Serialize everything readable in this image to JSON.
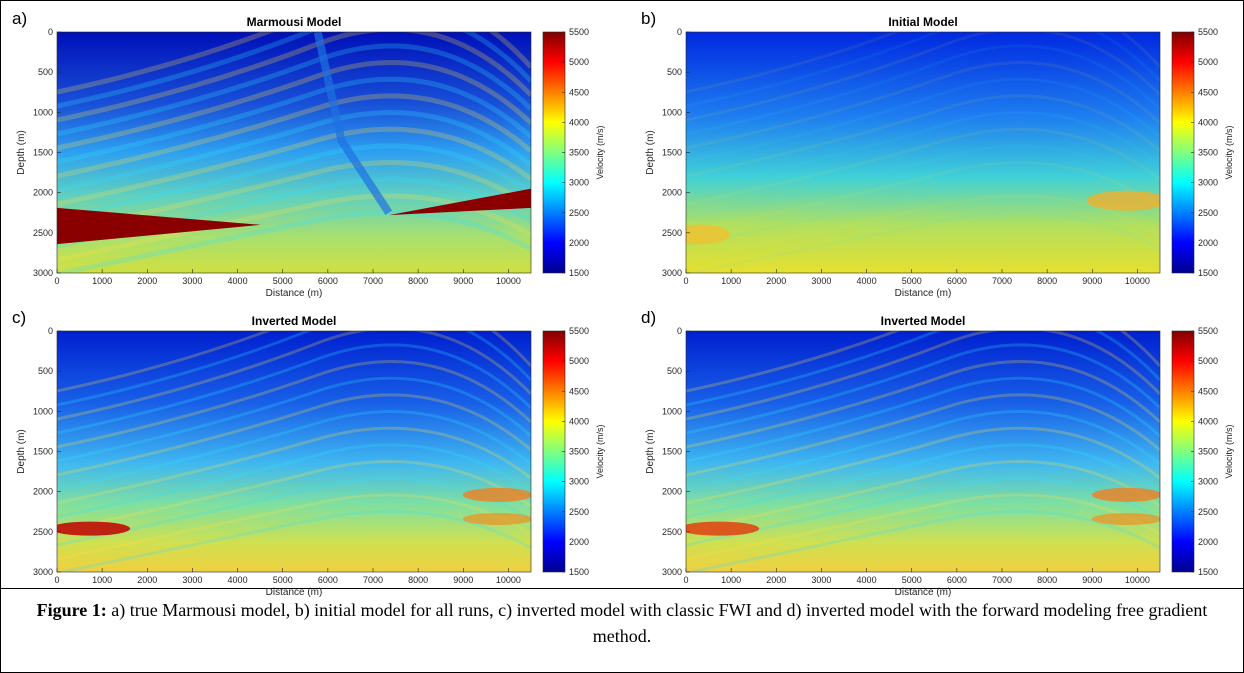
{
  "figure": {
    "panels": [
      {
        "label": "a)",
        "title": "Marmousi Model",
        "xlabel": "Distance (m)",
        "ylabel": "Depth (m)",
        "colorbar_label": "Velocity (m/s)",
        "xlim": [
          0,
          10500
        ],
        "ylim": [
          0,
          3000
        ],
        "clim": [
          1500,
          5500
        ],
        "xticks": [
          0,
          1000,
          2000,
          3000,
          4000,
          5000,
          6000,
          7000,
          8000,
          9000,
          10000
        ],
        "yticks": [
          0,
          500,
          1000,
          1500,
          2000,
          2500,
          3000
        ],
        "cticks": [
          1500,
          2000,
          2500,
          3000,
          3500,
          4000,
          4500,
          5000,
          5500
        ]
      },
      {
        "label": "b)",
        "title": "Initial Model",
        "xlabel": "Distance (m)",
        "ylabel": "Depth (m)",
        "colorbar_label": "Velocity (m/s)",
        "xlim": [
          0,
          10500
        ],
        "ylim": [
          0,
          3000
        ],
        "clim": [
          1500,
          5500
        ],
        "xticks": [
          0,
          1000,
          2000,
          3000,
          4000,
          5000,
          6000,
          7000,
          8000,
          9000,
          10000
        ],
        "yticks": [
          0,
          500,
          1000,
          1500,
          2000,
          2500,
          3000
        ],
        "cticks": [
          1500,
          2000,
          2500,
          3000,
          3500,
          4000,
          4500,
          5000,
          5500
        ]
      },
      {
        "label": "c)",
        "title": "Inverted Model",
        "xlabel": "Distance (m)",
        "ylabel": "Depth (m)",
        "colorbar_label": "Velocity (m/s)",
        "xlim": [
          0,
          10500
        ],
        "ylim": [
          0,
          3000
        ],
        "clim": [
          1500,
          5500
        ],
        "xticks": [
          0,
          1000,
          2000,
          3000,
          4000,
          5000,
          6000,
          7000,
          8000,
          9000,
          10000
        ],
        "yticks": [
          0,
          500,
          1000,
          1500,
          2000,
          2500,
          3000
        ],
        "cticks": [
          1500,
          2000,
          2500,
          3000,
          3500,
          4000,
          4500,
          5000,
          5500
        ]
      },
      {
        "label": "d)",
        "title": "Inverted Model",
        "xlabel": "Distance (m)",
        "ylabel": "Depth (m)",
        "colorbar_label": "Velocity (m/s)",
        "xlim": [
          0,
          10500
        ],
        "ylim": [
          0,
          3000
        ],
        "clim": [
          1500,
          5500
        ],
        "xticks": [
          0,
          1000,
          2000,
          3000,
          4000,
          5000,
          6000,
          7000,
          8000,
          9000,
          10000
        ],
        "yticks": [
          0,
          500,
          1000,
          1500,
          2000,
          2500,
          3000
        ],
        "cticks": [
          1500,
          2000,
          2500,
          3000,
          3500,
          4000,
          4500,
          5000,
          5500
        ]
      }
    ],
    "caption": {
      "lead": "Figure 1:",
      "text": "a) true Marmousi model, b) initial model for all runs, c) inverted model with classic FWI and d) inverted model with the forward modeling free gradient method."
    }
  }
}
